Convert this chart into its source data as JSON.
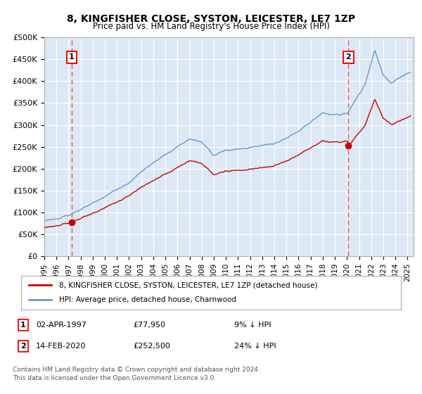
{
  "title": "8, KINGFISHER CLOSE, SYSTON, LEICESTER, LE7 1ZP",
  "subtitle": "Price paid vs. HM Land Registry's House Price Index (HPI)",
  "ylabel_ticks": [
    "£0",
    "£50K",
    "£100K",
    "£150K",
    "£200K",
    "£250K",
    "£300K",
    "£350K",
    "£400K",
    "£450K",
    "£500K"
  ],
  "ytick_values": [
    0,
    50000,
    100000,
    150000,
    200000,
    250000,
    300000,
    350000,
    400000,
    450000,
    500000
  ],
  "xlim_start": 1995.0,
  "xlim_end": 2025.5,
  "ylim": [
    0,
    500000
  ],
  "fig_bg_color": "#ffffff",
  "plot_bg_color": "#dce9f5",
  "grid_color": "#ffffff",
  "hpi_line_color": "#6699cc",
  "price_line_color": "#cc0000",
  "marker1_date": 1997.25,
  "marker1_price": 77950,
  "marker1_label": "02-APR-1997",
  "marker1_value_label": "£77,950",
  "marker1_pct": "9% ↓ HPI",
  "marker2_date": 2020.12,
  "marker2_price": 252500,
  "marker2_label": "14-FEB-2020",
  "marker2_value_label": "£252,500",
  "marker2_pct": "24% ↓ HPI",
  "legend_label1": "8, KINGFISHER CLOSE, SYSTON, LEICESTER, LE7 1ZP (detached house)",
  "legend_label2": "HPI: Average price, detached house, Charnwood",
  "footnote1": "Contains HM Land Registry data © Crown copyright and database right 2024.",
  "footnote2": "This data is licensed under the Open Government Licence v3.0.",
  "xtick_years": [
    1995,
    1996,
    1997,
    1998,
    1999,
    2000,
    2001,
    2002,
    2003,
    2004,
    2005,
    2006,
    2007,
    2008,
    2009,
    2010,
    2011,
    2012,
    2013,
    2014,
    2015,
    2016,
    2017,
    2018,
    2019,
    2020,
    2021,
    2022,
    2023,
    2024,
    2025
  ],
  "hpi_seed": 101,
  "price_seed": 202
}
